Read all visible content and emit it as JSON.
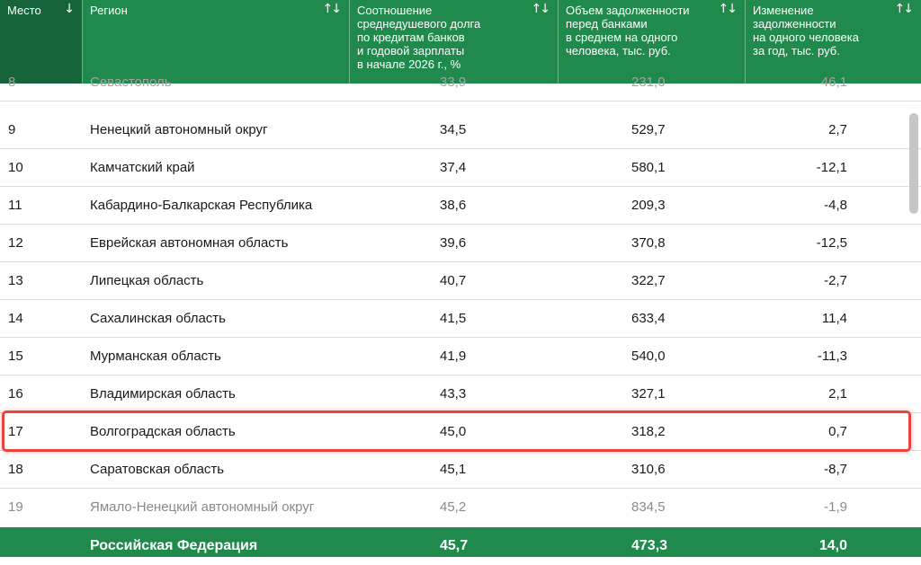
{
  "header": {
    "rank": "Место",
    "rank_sort": "↓",
    "region": "Регион",
    "ratio": "Соотношение\nсреднедушевого долга\nпо кредитам банков\nи годовой зарплаты\nв начале 2026 г., %",
    "debt": "Объем задолженности\nперед банками\nв среднем на одного\nчеловека, тыс. руб.",
    "change": "Изменение\nзадолженности\nна одного человека\nза год, тыс. руб.",
    "sort_both": "↑↓"
  },
  "rows": [
    {
      "rank": "8",
      "region": "Севастополь",
      "ratio": "33,9",
      "debt": "231,0",
      "change": "46,1"
    },
    {
      "rank": "9",
      "region": "Ненецкий автономный округ",
      "ratio": "34,5",
      "debt": "529,7",
      "change": "2,7"
    },
    {
      "rank": "10",
      "region": "Камчатский край",
      "ratio": "37,4",
      "debt": "580,1",
      "change": "-12,1"
    },
    {
      "rank": "11",
      "region": "Кабардино-Балкарская Республика",
      "ratio": "38,6",
      "debt": "209,3",
      "change": "-4,8"
    },
    {
      "rank": "12",
      "region": "Еврейская автономная область",
      "ratio": "39,6",
      "debt": "370,8",
      "change": "-12,5"
    },
    {
      "rank": "13",
      "region": "Липецкая область",
      "ratio": "40,7",
      "debt": "322,7",
      "change": "-2,7"
    },
    {
      "rank": "14",
      "region": "Сахалинская область",
      "ratio": "41,5",
      "debt": "633,4",
      "change": "11,4"
    },
    {
      "rank": "15",
      "region": "Мурманская область",
      "ratio": "41,9",
      "debt": "540,0",
      "change": "-11,3"
    },
    {
      "rank": "16",
      "region": "Владимирская область",
      "ratio": "43,3",
      "debt": "327,1",
      "change": "2,1"
    },
    {
      "rank": "17",
      "region": "Волгоградская область",
      "ratio": "45,0",
      "debt": "318,2",
      "change": "0,7"
    },
    {
      "rank": "18",
      "region": "Саратовская область",
      "ratio": "45,1",
      "debt": "310,6",
      "change": "-8,7"
    },
    {
      "rank": "19",
      "region": "Ямало-Ненецкий автономный округ",
      "ratio": "45,2",
      "debt": "834,5",
      "change": "-1,9"
    }
  ],
  "total": {
    "region": "Российская Федерация",
    "ratio": "45,7",
    "debt": "473,3",
    "change": "14,0"
  },
  "colors": {
    "header_green": "#1f8a4c",
    "rank_header_dark_green": "#17633a",
    "highlight_red": "#e8453c"
  }
}
